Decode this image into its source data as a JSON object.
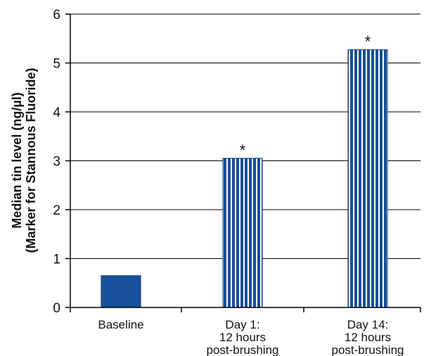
{
  "chart_data": {
    "type": "bar",
    "categories": [
      [
        "Baseline"
      ],
      [
        "Day 1:",
        "12 hours",
        "post-brushing"
      ],
      [
        "Day 14:",
        "12 hours",
        "post-brushing"
      ]
    ],
    "values": [
      0.65,
      3.05,
      5.27
    ],
    "annotations": [
      "",
      "*",
      "*"
    ],
    "bar_styles": [
      "solid",
      "striped",
      "striped"
    ],
    "ylabel": [
      "Median tin level (ng/µl)",
      "(Marker for Stannous Fluoride)"
    ],
    "yticks": [
      "0",
      "1",
      "2",
      "3",
      "4",
      "5",
      "6"
    ],
    "ylim": [
      0,
      6
    ],
    "grid": true,
    "colors": {
      "bar": "#1a4f99",
      "stripe": "#ffffff",
      "grid": "#000000",
      "axis": "#000000"
    }
  }
}
